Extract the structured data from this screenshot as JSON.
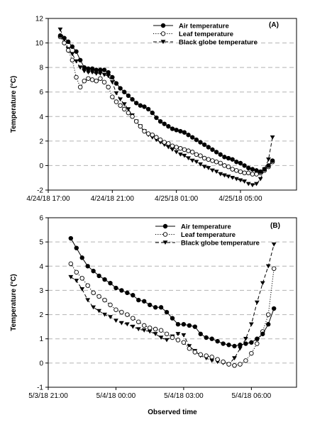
{
  "chart_data": [
    {
      "type": "line",
      "panel_label": "(A)",
      "ylabel": "Temperature (°C)",
      "xlabel": "",
      "ylim": [
        -2,
        12
      ],
      "yticks": [
        -2,
        0,
        2,
        4,
        6,
        8,
        10,
        12
      ],
      "xlim": [
        "4/24/18 17:00",
        "4/25/18 08:30"
      ],
      "xticks": [
        "4/24/18 17:00",
        "4/24/18 21:00",
        "4/25/18 01:00",
        "4/25/18 05:00"
      ],
      "grid": "horizontal dashed",
      "legend": "top-right",
      "series": [
        {
          "name": "Air temperature",
          "marker": "filled-circle",
          "line": "solid",
          "x": [
            "4/24/18 17:45",
            "4/24/18 18:00",
            "4/24/18 18:15",
            "4/24/18 18:30",
            "4/24/18 18:45",
            "4/24/18 19:00",
            "4/24/18 19:15",
            "4/24/18 19:30",
            "4/24/18 19:45",
            "4/24/18 20:00",
            "4/24/18 20:15",
            "4/24/18 20:30",
            "4/24/18 20:45",
            "4/24/18 21:00",
            "4/24/18 21:15",
            "4/24/18 21:30",
            "4/24/18 21:45",
            "4/24/18 22:00",
            "4/24/18 22:15",
            "4/24/18 22:30",
            "4/24/18 22:45",
            "4/24/18 23:00",
            "4/24/18 23:15",
            "4/24/18 23:30",
            "4/24/18 23:45",
            "4/25/18 00:00",
            "4/25/18 00:15",
            "4/25/18 00:30",
            "4/25/18 00:45",
            "4/25/18 01:00",
            "4/25/18 01:15",
            "4/25/18 01:30",
            "4/25/18 01:45",
            "4/25/18 02:00",
            "4/25/18 02:15",
            "4/25/18 02:30",
            "4/25/18 02:45",
            "4/25/18 03:00",
            "4/25/18 03:15",
            "4/25/18 03:30",
            "4/25/18 03:45",
            "4/25/18 04:00",
            "4/25/18 04:15",
            "4/25/18 04:30",
            "4/25/18 04:45",
            "4/25/18 05:00",
            "4/25/18 05:15",
            "4/25/18 05:30",
            "4/25/18 05:45",
            "4/25/18 06:00",
            "4/25/18 06:15",
            "4/25/18 06:30",
            "4/25/18 06:45",
            "4/25/18 07:00"
          ],
          "y": [
            10.6,
            10.4,
            10.1,
            9.7,
            9.3,
            8.6,
            8.0,
            7.9,
            7.9,
            7.8,
            7.8,
            7.8,
            7.6,
            7.2,
            6.7,
            6.3,
            6.0,
            5.7,
            5.4,
            5.1,
            4.9,
            4.8,
            4.6,
            4.3,
            3.9,
            3.6,
            3.4,
            3.2,
            3.0,
            2.9,
            2.8,
            2.7,
            2.5,
            2.3,
            2.1,
            1.9,
            1.7,
            1.5,
            1.3,
            1.1,
            0.9,
            0.7,
            0.6,
            0.5,
            0.3,
            0.2,
            0.0,
            -0.2,
            -0.3,
            -0.4,
            -0.5,
            -0.3,
            0.0,
            0.4
          ]
        },
        {
          "name": "Leaf temperature",
          "marker": "open-circle",
          "line": "dotted",
          "x": [
            "4/24/18 17:45",
            "4/24/18 18:00",
            "4/24/18 18:15",
            "4/24/18 18:30",
            "4/24/18 18:45",
            "4/24/18 19:00",
            "4/24/18 19:15",
            "4/24/18 19:30",
            "4/24/18 19:45",
            "4/24/18 20:00",
            "4/24/18 20:15",
            "4/24/18 20:30",
            "4/24/18 20:45",
            "4/24/18 21:00",
            "4/24/18 21:15",
            "4/24/18 21:30",
            "4/24/18 21:45",
            "4/24/18 22:00",
            "4/24/18 22:15",
            "4/24/18 22:30",
            "4/24/18 22:45",
            "4/24/18 23:00",
            "4/24/18 23:15",
            "4/24/18 23:30",
            "4/24/18 23:45",
            "4/25/18 00:00",
            "4/25/18 00:15",
            "4/25/18 00:30",
            "4/25/18 00:45",
            "4/25/18 01:00",
            "4/25/18 01:15",
            "4/25/18 01:30",
            "4/25/18 01:45",
            "4/25/18 02:00",
            "4/25/18 02:15",
            "4/25/18 02:30",
            "4/25/18 02:45",
            "4/25/18 03:00",
            "4/25/18 03:15",
            "4/25/18 03:30",
            "4/25/18 03:45",
            "4/25/18 04:00",
            "4/25/18 04:15",
            "4/25/18 04:30",
            "4/25/18 04:45",
            "4/25/18 05:00",
            "4/25/18 05:15",
            "4/25/18 05:30",
            "4/25/18 05:45",
            "4/25/18 06:00",
            "4/25/18 06:15",
            "4/25/18 06:30",
            "4/25/18 06:45",
            "4/25/18 07:00"
          ],
          "y": [
            10.5,
            10.0,
            9.4,
            8.6,
            7.2,
            6.4,
            6.9,
            7.1,
            7.0,
            6.9,
            7.1,
            6.8,
            6.4,
            5.6,
            5.2,
            4.9,
            4.6,
            4.3,
            4.0,
            3.6,
            3.2,
            2.8,
            2.6,
            2.5,
            2.3,
            2.1,
            1.9,
            1.8,
            1.6,
            1.5,
            1.4,
            1.3,
            1.2,
            1.1,
            0.9,
            0.8,
            0.6,
            0.5,
            0.4,
            0.3,
            0.2,
            0.0,
            -0.1,
            -0.3,
            -0.4,
            -0.5,
            -0.6,
            -0.6,
            -0.7,
            -0.7,
            -0.6,
            -0.4,
            -0.1,
            0.3
          ]
        },
        {
          "name": "Black globe temperature",
          "marker": "filled-triangle-down",
          "line": "dashed",
          "x": [
            "4/24/18 17:45",
            "4/24/18 18:00",
            "4/24/18 18:15",
            "4/24/18 18:30",
            "4/24/18 18:45",
            "4/24/18 19:00",
            "4/24/18 19:15",
            "4/24/18 19:30",
            "4/24/18 19:45",
            "4/24/18 20:00",
            "4/24/18 20:15",
            "4/24/18 20:30",
            "4/24/18 20:45",
            "4/24/18 21:00",
            "4/24/18 21:15",
            "4/24/18 21:30",
            "4/24/18 21:45",
            "4/24/18 22:00",
            "4/24/18 22:15",
            "4/24/18 22:30",
            "4/24/18 22:45",
            "4/24/18 23:00",
            "4/24/18 23:15",
            "4/24/18 23:30",
            "4/24/18 23:45",
            "4/25/18 00:00",
            "4/25/18 00:15",
            "4/25/18 00:30",
            "4/25/18 00:45",
            "4/25/18 01:00",
            "4/25/18 01:15",
            "4/25/18 01:30",
            "4/25/18 01:45",
            "4/25/18 02:00",
            "4/25/18 02:15",
            "4/25/18 02:30",
            "4/25/18 02:45",
            "4/25/18 03:00",
            "4/25/18 03:15",
            "4/25/18 03:30",
            "4/25/18 03:45",
            "4/25/18 04:00",
            "4/25/18 04:15",
            "4/25/18 04:30",
            "4/25/18 04:45",
            "4/25/18 05:00",
            "4/25/18 05:15",
            "4/25/18 05:30",
            "4/25/18 05:45",
            "4/25/18 06:00",
            "4/25/18 06:15",
            "4/25/18 06:30",
            "4/25/18 06:45",
            "4/25/18 07:00"
          ],
          "y": [
            11.1,
            10.3,
            9.5,
            9.1,
            8.5,
            8.0,
            7.7,
            7.6,
            7.6,
            7.5,
            7.5,
            7.4,
            7.3,
            6.8,
            5.9,
            5.4,
            5.0,
            4.6,
            4.1,
            3.6,
            3.2,
            2.8,
            2.5,
            2.3,
            2.1,
            1.9,
            1.7,
            1.5,
            1.3,
            1.1,
            0.9,
            0.8,
            0.6,
            0.4,
            0.3,
            0.1,
            -0.1,
            -0.2,
            -0.4,
            -0.5,
            -0.7,
            -0.8,
            -0.9,
            -1.0,
            -1.1,
            -1.2,
            -1.3,
            -1.5,
            -1.6,
            -1.5,
            -1.1,
            -0.3,
            0.5,
            2.3
          ]
        }
      ]
    },
    {
      "type": "line",
      "panel_label": "(B)",
      "ylabel": "Temperature (°C)",
      "xlabel": "Observed time",
      "ylim": [
        -1,
        6
      ],
      "yticks": [
        -1,
        0,
        1,
        2,
        3,
        4,
        5,
        6
      ],
      "xlim": [
        "5/3/18 21:00",
        "5/4/18 08:00"
      ],
      "xticks": [
        "5/3/18 21:00",
        "5/4/18 00:00",
        "5/4/18 03:00",
        "5/4/18 06:00"
      ],
      "grid": "horizontal dashed",
      "legend": "top-right",
      "series": [
        {
          "name": "Air temperature",
          "marker": "filled-circle",
          "line": "solid",
          "x": [
            "5/3/18 22:00",
            "5/3/18 22:15",
            "5/3/18 22:30",
            "5/3/18 22:45",
            "5/3/18 23:00",
            "5/3/18 23:15",
            "5/3/18 23:30",
            "5/3/18 23:45",
            "5/4/18 00:00",
            "5/4/18 00:15",
            "5/4/18 00:30",
            "5/4/18 00:45",
            "5/4/18 01:00",
            "5/4/18 01:15",
            "5/4/18 01:30",
            "5/4/18 01:45",
            "5/4/18 02:00",
            "5/4/18 02:15",
            "5/4/18 02:30",
            "5/4/18 02:45",
            "5/4/18 03:00",
            "5/4/18 03:15",
            "5/4/18 03:30",
            "5/4/18 03:45",
            "5/4/18 04:00",
            "5/4/18 04:15",
            "5/4/18 04:30",
            "5/4/18 04:45",
            "5/4/18 05:00",
            "5/4/18 05:15",
            "5/4/18 05:30",
            "5/4/18 05:45",
            "5/4/18 06:00",
            "5/4/18 06:15",
            "5/4/18 06:30",
            "5/4/18 06:45",
            "5/4/18 07:00"
          ],
          "y": [
            5.15,
            4.75,
            4.35,
            4.0,
            3.8,
            3.6,
            3.45,
            3.3,
            3.1,
            3.0,
            2.9,
            2.8,
            2.6,
            2.55,
            2.4,
            2.3,
            2.3,
            2.1,
            1.85,
            1.6,
            1.6,
            1.55,
            1.5,
            1.2,
            1.05,
            1.0,
            0.9,
            0.8,
            0.75,
            0.7,
            0.75,
            0.8,
            0.85,
            1.0,
            1.2,
            1.6,
            2.25
          ]
        },
        {
          "name": "Leaf temperature",
          "marker": "open-circle",
          "line": "dotted",
          "x": [
            "5/3/18 22:00",
            "5/3/18 22:15",
            "5/3/18 22:30",
            "5/3/18 22:45",
            "5/3/18 23:00",
            "5/3/18 23:15",
            "5/3/18 23:30",
            "5/3/18 23:45",
            "5/4/18 00:00",
            "5/4/18 00:15",
            "5/4/18 00:30",
            "5/4/18 00:45",
            "5/4/18 01:00",
            "5/4/18 01:15",
            "5/4/18 01:30",
            "5/4/18 01:45",
            "5/4/18 02:00",
            "5/4/18 02:15",
            "5/4/18 02:30",
            "5/4/18 02:45",
            "5/4/18 03:00",
            "5/4/18 03:15",
            "5/4/18 03:30",
            "5/4/18 03:45",
            "5/4/18 04:00",
            "5/4/18 04:15",
            "5/4/18 04:30",
            "5/4/18 04:45",
            "5/4/18 05:00",
            "5/4/18 05:15",
            "5/4/18 05:30",
            "5/4/18 05:45",
            "5/4/18 06:00",
            "5/4/18 06:15",
            "5/4/18 06:30",
            "5/4/18 06:45",
            "5/4/18 07:00"
          ],
          "y": [
            4.1,
            3.75,
            3.5,
            3.2,
            2.9,
            2.75,
            2.6,
            2.4,
            2.2,
            2.1,
            2.0,
            1.85,
            1.7,
            1.55,
            1.45,
            1.4,
            1.35,
            1.2,
            1.05,
            0.95,
            0.85,
            0.6,
            0.45,
            0.35,
            0.3,
            0.25,
            0.15,
            0.05,
            -0.05,
            -0.1,
            -0.05,
            0.1,
            0.4,
            0.8,
            1.3,
            2.0,
            3.9
          ]
        },
        {
          "name": "Black globe temperature",
          "marker": "filled-triangle-down",
          "line": "dashed",
          "x": [
            "5/3/18 22:00",
            "5/3/18 22:15",
            "5/3/18 22:30",
            "5/3/18 22:45",
            "5/3/18 23:00",
            "5/3/18 23:15",
            "5/3/18 23:30",
            "5/3/18 23:45",
            "5/4/18 00:00",
            "5/4/18 00:15",
            "5/4/18 00:30",
            "5/4/18 00:45",
            "5/4/18 01:00",
            "5/4/18 01:15",
            "5/4/18 01:30",
            "5/4/18 01:45",
            "5/4/18 02:00",
            "5/4/18 02:15",
            "5/4/18 02:30",
            "5/4/18 02:45",
            "5/4/18 03:00",
            "5/4/18 03:15",
            "5/4/18 03:30",
            "5/4/18 03:45",
            "5/4/18 04:00",
            "5/4/18 04:15",
            "5/4/18 04:30",
            "5/4/18 04:45",
            "5/4/18 05:00",
            "5/4/18 05:15",
            "5/4/18 05:30",
            "5/4/18 05:45",
            "5/4/18 06:00",
            "5/4/18 06:15",
            "5/4/18 06:30",
            "5/4/18 06:45",
            "5/4/18 07:00"
          ],
          "y": [
            3.55,
            3.4,
            3.05,
            2.6,
            2.3,
            2.15,
            2.0,
            1.9,
            1.75,
            1.65,
            1.6,
            1.5,
            1.4,
            1.35,
            1.3,
            1.2,
            1.05,
            0.95,
            1.1,
            1.2,
            1.15,
            0.7,
            0.5,
            0.3,
            0.2,
            0.1,
            0.05,
            0.0,
            -0.05,
            0.2,
            0.6,
            1.0,
            1.6,
            2.5,
            3.3,
            4.0,
            4.9
          ]
        }
      ]
    }
  ]
}
